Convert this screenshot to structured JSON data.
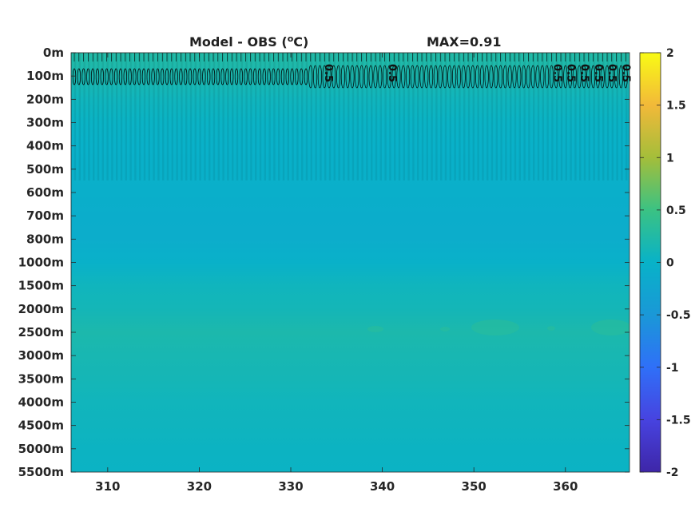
{
  "chart_data": {
    "type": "heatmap",
    "title": "Model - OBS (",
    "title_unit_sup": "o",
    "title_unit": "C)",
    "max_label": "MAX=0.91",
    "x_ticks": [
      310,
      320,
      330,
      340,
      350,
      360
    ],
    "x_labels": [
      "310",
      "320",
      "330",
      "340",
      "350",
      "360"
    ],
    "xlim": [
      306,
      367
    ],
    "y_labels": [
      "0m",
      "100m",
      "200m",
      "300m",
      "400m",
      "500m",
      "600m",
      "700m",
      "800m",
      "1000m",
      "1500m",
      "2000m",
      "2500m",
      "3000m",
      "3500m",
      "4000m",
      "4500m",
      "5000m",
      "5500m"
    ],
    "colorbar": {
      "ticks": [
        2,
        1.5,
        1,
        0.5,
        0,
        -0.5,
        -1,
        -1.5,
        -2
      ],
      "labels": [
        "2",
        "1.5",
        "1",
        "0.5",
        "0",
        "-0.5",
        "-1",
        "-1.5",
        "-2"
      ],
      "range": [
        -2,
        2
      ],
      "colormap": "parula"
    },
    "depth_profile": [
      0.25,
      0.18,
      0.08,
      0.02,
      -0.02,
      -0.04,
      -0.06,
      -0.09,
      -0.1,
      -0.02,
      0.08,
      0.12,
      0.2,
      0.16,
      0.13,
      0.09,
      0.07,
      0.04,
      0.03
    ],
    "contour_labels": [
      {
        "x": 334,
        "text": "0.5"
      },
      {
        "x": 341,
        "text": "0.5"
      },
      {
        "x": 359,
        "text": "0.5"
      },
      {
        "x": 360.5,
        "text": "0.5"
      },
      {
        "x": 362,
        "text": "0.5"
      },
      {
        "x": 363.5,
        "text": "0.5"
      },
      {
        "x": 365,
        "text": "0.5"
      },
      {
        "x": 366.5,
        "text": "0.5"
      }
    ]
  }
}
